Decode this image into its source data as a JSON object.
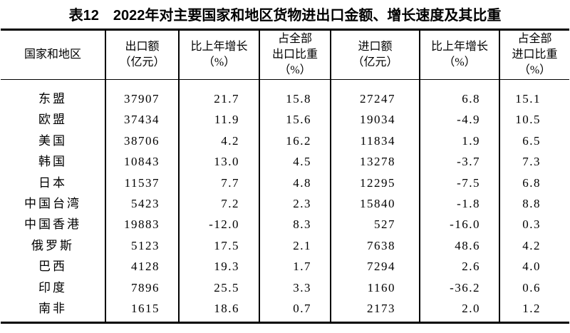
{
  "page": {
    "title": "表12　2022年对主要国家和地区货物进出口金额、增长速度及其比重",
    "background_color": "#ffffff",
    "text_color": "#000000",
    "border_color": "#000000"
  },
  "table": {
    "headers": [
      {
        "id": "region",
        "lines": [
          "国家和地区"
        ]
      },
      {
        "id": "export-value",
        "lines": [
          "出口额",
          "（亿元）"
        ]
      },
      {
        "id": "export-growth",
        "lines": [
          "比上年增长",
          "（%）"
        ]
      },
      {
        "id": "export-share",
        "lines": [
          "占全部",
          "出口比重",
          "（%）"
        ]
      },
      {
        "id": "import-value",
        "lines": [
          "进口额",
          "（亿元）"
        ]
      },
      {
        "id": "import-growth",
        "lines": [
          "比上年增长",
          "（%）"
        ]
      },
      {
        "id": "import-share",
        "lines": [
          "占全部",
          "进口比重",
          "（%）"
        ]
      }
    ],
    "rows": [
      {
        "cells": [
          "东盟",
          "37907",
          "21.7",
          "15.8",
          "27247",
          "6.8",
          "15.1"
        ]
      },
      {
        "cells": [
          "欧盟",
          "37434",
          "11.9",
          "15.6",
          "19034",
          "-4.9",
          "10.5"
        ]
      },
      {
        "cells": [
          "美国",
          "38706",
          "4.2",
          "16.2",
          "11834",
          "1.9",
          "6.5"
        ]
      },
      {
        "cells": [
          "韩国",
          "10843",
          "13.0",
          "4.5",
          "13278",
          "-3.7",
          "7.3"
        ]
      },
      {
        "cells": [
          "日本",
          "11537",
          "7.7",
          "4.8",
          "12295",
          "-7.5",
          "6.8"
        ]
      },
      {
        "cells": [
          "中国台湾",
          "5423",
          "7.2",
          "2.3",
          "15840",
          "-1.8",
          "8.8"
        ]
      },
      {
        "cells": [
          "中国香港",
          "19883",
          "-12.0",
          "8.3",
          "527",
          "-16.0",
          "0.3"
        ]
      },
      {
        "cells": [
          "俄罗斯",
          "5123",
          "17.5",
          "2.1",
          "7638",
          "48.6",
          "4.2"
        ]
      },
      {
        "cells": [
          "巴西",
          "4128",
          "19.3",
          "1.7",
          "7294",
          "2.6",
          "4.0"
        ]
      },
      {
        "cells": [
          "印度",
          "7896",
          "25.5",
          "3.3",
          "1160",
          "-36.2",
          "0.6"
        ]
      },
      {
        "cells": [
          "南非",
          "1615",
          "18.6",
          "0.7",
          "2173",
          "2.0",
          "1.2"
        ]
      }
    ]
  }
}
